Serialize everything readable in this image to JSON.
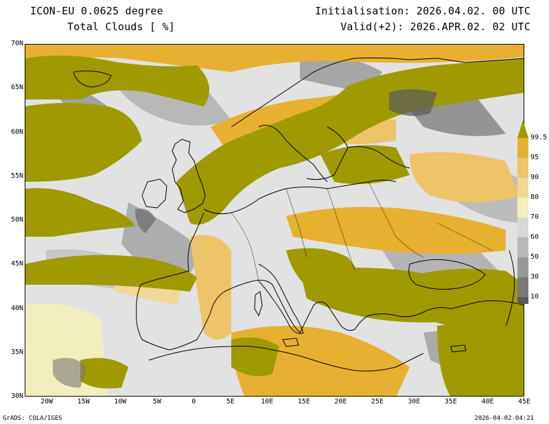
{
  "header": {
    "title": "ICON-EU 0.0625 degree",
    "variable": "Total Clouds  [ %]",
    "initialisation": "Initialisation: 2026.04.02. 00 UTC",
    "valid": "Valid(+2): 2026.APR.02. 02 UTC"
  },
  "map": {
    "lat_labels": [
      "70N",
      "65N",
      "60N",
      "55N",
      "50N",
      "45N",
      "40N",
      "35N",
      "30N"
    ],
    "lon_labels": [
      "20W",
      "15W",
      "10W",
      "5W",
      "0",
      "5E",
      "10E",
      "15E",
      "20E",
      "25E",
      "30E",
      "35E",
      "40E",
      "45E"
    ],
    "lat_range": [
      30,
      70
    ],
    "lon_range": [
      -23,
      45
    ],
    "field": "total cloud cover",
    "unit": "%"
  },
  "colorbar": {
    "labels": [
      "99.5",
      "95",
      "90",
      "80",
      "70",
      "60",
      "50",
      "30",
      "10"
    ],
    "colors": [
      "#9e9a00",
      "#e8b030",
      "#eec468",
      "#f0d898",
      "#f2eebe",
      "#d8d8d8",
      "#b8b8b8",
      "#999999",
      "#7a7a7a",
      "#5a5a5a"
    ]
  },
  "palette": {
    "overcast": "#9e9a00",
    "gold": "#e8b030",
    "light_gold": "#f0d898",
    "clear": "#e2e2e2",
    "grey": "#b4b4b4",
    "dark_grey": "#7c7c7c",
    "coast": "#000000"
  },
  "footer": {
    "left": "GrADS: COLA/IGES",
    "right": "2026-04-02-04:21"
  }
}
